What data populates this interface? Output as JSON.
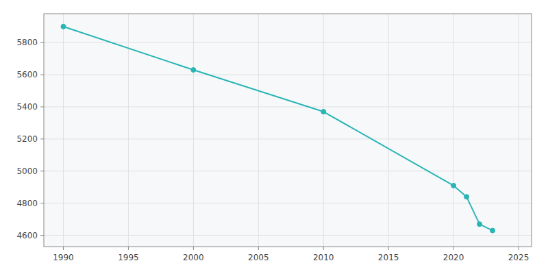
{
  "chart_data": {
    "type": "line",
    "x": [
      1990,
      2000,
      2010,
      2020,
      2021,
      2022,
      2023
    ],
    "values": [
      5900,
      5630,
      5370,
      4910,
      4840,
      4670,
      4630
    ],
    "color": "#2ab5b5",
    "marker": "circle",
    "xlim": [
      1988.5,
      2026
    ],
    "ylim": [
      4530,
      5980
    ],
    "xticks": [
      1990,
      1995,
      2000,
      2005,
      2010,
      2015,
      2020,
      2025
    ],
    "yticks": [
      4600,
      4800,
      5000,
      5200,
      5400,
      5600,
      5800
    ],
    "grid": true
  }
}
